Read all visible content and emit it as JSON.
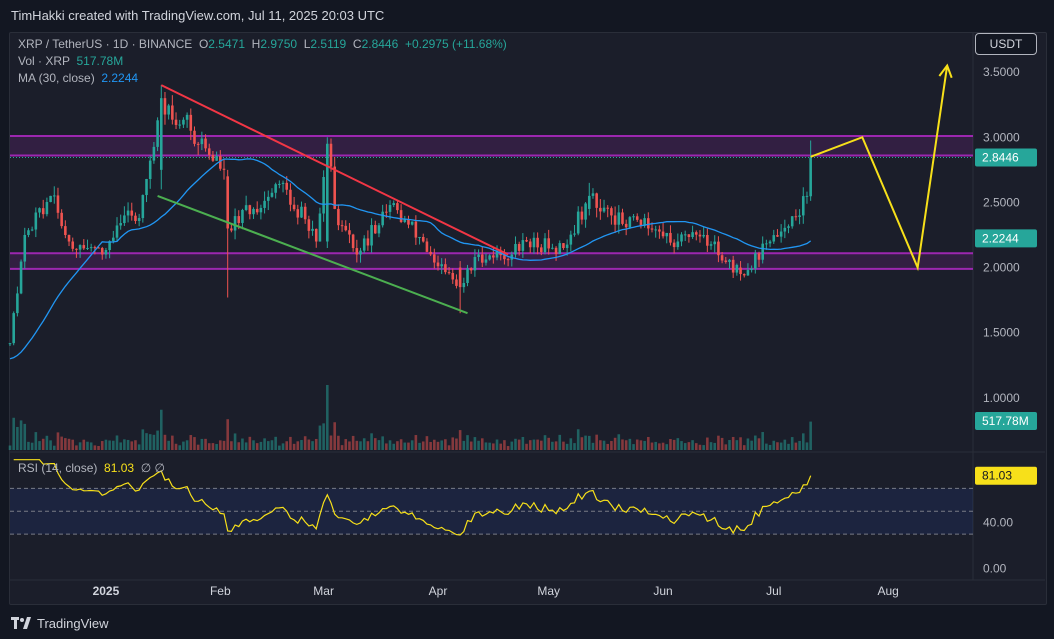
{
  "credit": "TimHakki created with TradingView.com, Jul 11, 2025 20:03 UTC",
  "footer_brand": "TradingView",
  "currency_button": "USDT",
  "legend": {
    "symbol": "XRP / TetherUS · 1D · BINANCE",
    "o_label": "O",
    "o_value": "2.5471",
    "h_label": "H",
    "h_value": "2.9750",
    "l_label": "L",
    "l_value": "2.5119",
    "c_label": "C",
    "c_value": "2.8446",
    "change": "+0.2975 (+11.68%)",
    "vol_label": "Vol · XRP",
    "vol_value": "517.78M",
    "ma_label": "MA (30, close)",
    "ma_value": "2.2244",
    "rsi_label": "RSI (14, close)",
    "rsi_value": "81.03",
    "rsi_extra": "∅ ∅"
  },
  "badges": {
    "price": "2.8446",
    "ma": "2.2244",
    "volume": "517.78M",
    "rsi": "81.03"
  },
  "colors": {
    "background": "#1b1e2a",
    "up": "#26a69a",
    "down": "#ef5350",
    "ma": "#2196f3",
    "rsi": "#f7e01a",
    "zone": "#9c27b0",
    "resistance_trendline": "#f23645",
    "support_trendline": "#4caf50",
    "projection": "#f7e01a"
  },
  "chart_data": [
    {
      "type": "candlestick",
      "title": "XRP / TetherUS · 1D · BINANCE",
      "x_labels": [
        "2025",
        "Feb",
        "Mar",
        "Apr",
        "May",
        "Jun",
        "Jul",
        "Aug"
      ],
      "y_ticks": [
        3.5,
        3.0,
        2.5,
        2.0,
        1.5,
        1.0
      ],
      "y_range": [
        0.6,
        3.8
      ],
      "last_close": 2.8446,
      "key_candles": [
        {
          "date": "2025-01-16",
          "open": 2.75,
          "high": 3.4,
          "low": 2.6,
          "close": 3.3
        },
        {
          "date": "2025-02-03",
          "open": 2.7,
          "high": 2.75,
          "low": 1.77,
          "close": 2.3
        },
        {
          "date": "2025-03-02",
          "open": 2.2,
          "high": 3.0,
          "low": 2.15,
          "close": 2.95
        },
        {
          "date": "2025-04-07",
          "open": 2.0,
          "high": 2.05,
          "low": 1.65,
          "close": 1.85
        },
        {
          "date": "2025-05-12",
          "open": 2.45,
          "high": 2.65,
          "low": 2.4,
          "close": 2.55
        },
        {
          "date": "2025-06-22",
          "open": 2.0,
          "high": 2.05,
          "low": 1.9,
          "close": 1.95
        },
        {
          "date": "2025-07-11",
          "open": 2.5471,
          "high": 2.975,
          "low": 2.5119,
          "close": 2.8446
        }
      ],
      "zones": [
        {
          "label": "resistance",
          "from": 2.86,
          "to": 3.01
        },
        {
          "label": "support",
          "from": 1.99,
          "to": 2.11
        }
      ],
      "trendlines": [
        {
          "label": "descending resistance",
          "points": [
            [
              "2025-01-16",
              3.4
            ],
            [
              "2025-04-20",
              2.1
            ]
          ]
        },
        {
          "label": "descending support",
          "points": [
            [
              "2025-01-15",
              2.55
            ],
            [
              "2025-04-09",
              1.65
            ]
          ]
        }
      ],
      "projection": [
        [
          "2025-07-11",
          2.85
        ],
        [
          "2025-07-25",
          3.0
        ],
        [
          "2025-08-09",
          2.0
        ],
        [
          "2025-08-17",
          3.55
        ]
      ]
    },
    {
      "type": "bar",
      "title": "Vol · XRP",
      "last_value": "517.78M"
    },
    {
      "type": "line",
      "title": "RSI (14, close)",
      "y_ticks": [
        80.0,
        40.0,
        0.0
      ],
      "y_range": [
        -10,
        100
      ],
      "band": [
        30,
        70
      ],
      "last_value": 81.03
    }
  ]
}
